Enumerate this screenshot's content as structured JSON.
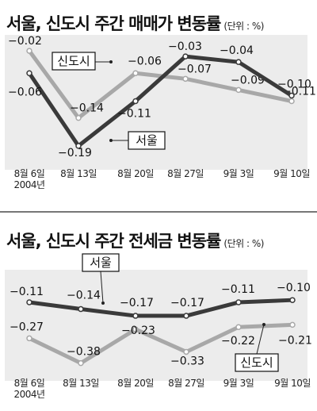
{
  "colors": {
    "dark_series": "#3a3a3a",
    "light_series": "#a8a8a8",
    "plot_bg": "#ececec"
  },
  "chart_data": [
    {
      "type": "line",
      "title": "서울, 신도시 주간 매매가 변동률",
      "unit": "(단위 : %)",
      "categories": [
        "8월 6일",
        "8월 13일",
        "8월 20일",
        "8월 27일",
        "9월 3일",
        "9월 10일"
      ],
      "year_label": "2004년",
      "ylim": [
        -0.22,
        0.0
      ],
      "grid": false,
      "series": [
        {
          "name": "신도시",
          "color": "light",
          "values": [
            -0.02,
            -0.14,
            -0.06,
            -0.07,
            -0.09,
            -0.11
          ]
        },
        {
          "name": "서울",
          "color": "dark",
          "values": [
            -0.06,
            -0.19,
            -0.11,
            -0.03,
            -0.04,
            -0.1
          ]
        }
      ]
    },
    {
      "type": "line",
      "title": "서울, 신도시 주간 전세금 변동률",
      "unit": "(단위 : %)",
      "categories": [
        "8월 6일",
        "8월 13일",
        "8월 20일",
        "8월 27일",
        "9월 3일",
        "9월 10일"
      ],
      "year_label": "2004년",
      "ylim": [
        -0.42,
        -0.05
      ],
      "grid": false,
      "series": [
        {
          "name": "서울",
          "color": "dark",
          "values": [
            -0.11,
            -0.14,
            -0.17,
            -0.17,
            -0.11,
            -0.1
          ]
        },
        {
          "name": "신도시",
          "color": "light",
          "values": [
            -0.27,
            -0.38,
            -0.23,
            -0.33,
            -0.22,
            -0.21
          ]
        }
      ]
    }
  ]
}
